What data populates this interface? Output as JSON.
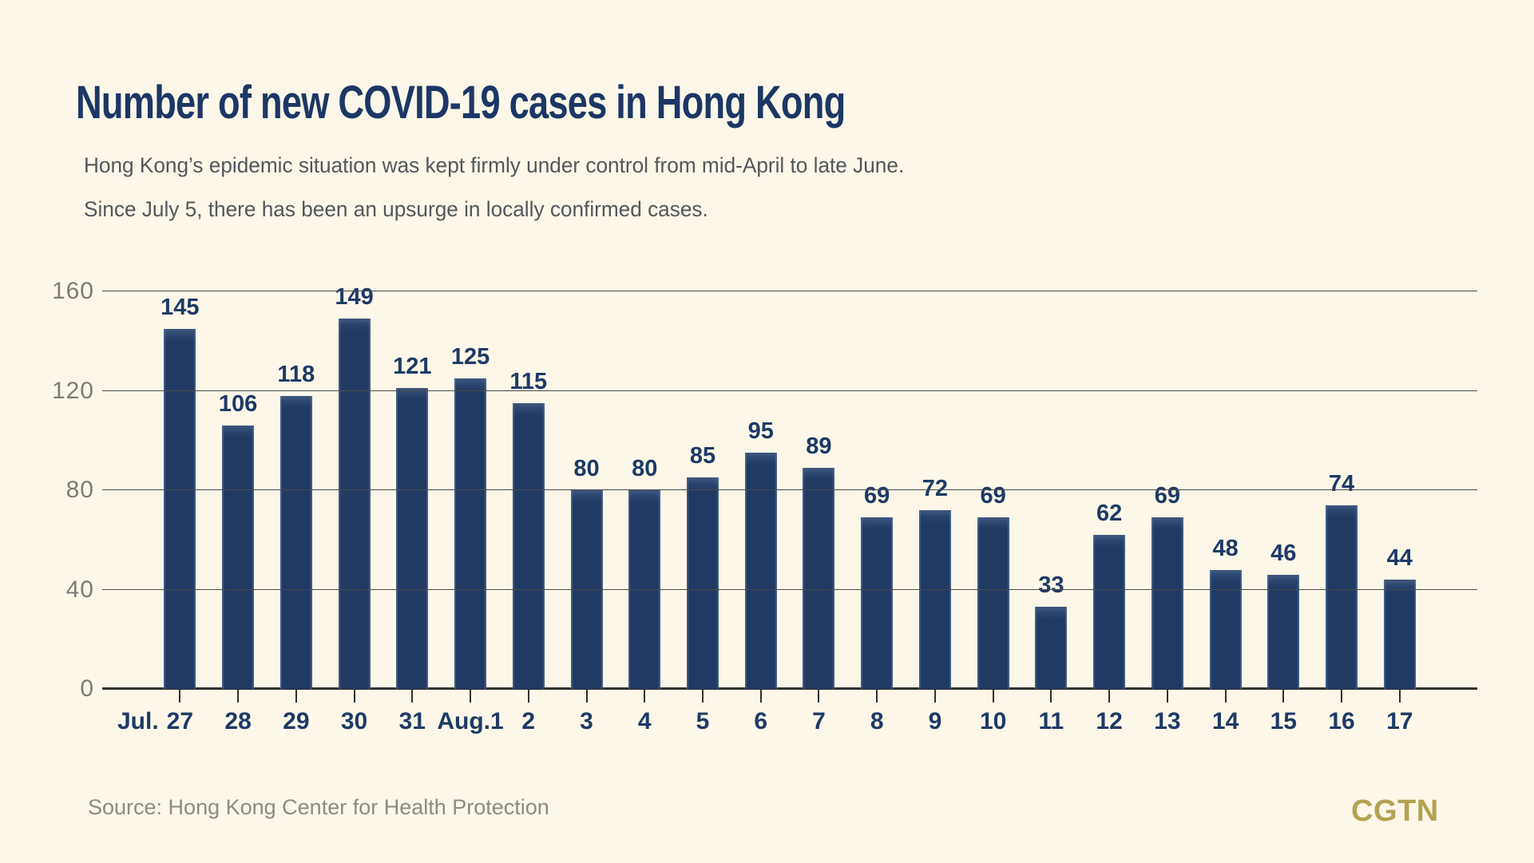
{
  "header": {
    "title": "Number of new COVID-19 cases in Hong Kong",
    "subtitle_line1": "Hong Kong’s epidemic situation was kept firmly under control from mid-April to late June.",
    "subtitle_line2": "Since July 5, there has been an upsurge in locally confirmed cases."
  },
  "chart_data": {
    "type": "bar",
    "title": "Number of new COVID-19 cases in Hong Kong",
    "categories": [
      "Jul. 27",
      "28",
      "29",
      "30",
      "31",
      "Aug.1",
      "2",
      "3",
      "4",
      "5",
      "6",
      "7",
      "8",
      "9",
      "10",
      "11",
      "12",
      "13",
      "14",
      "15",
      "16",
      "17"
    ],
    "values": [
      145,
      106,
      118,
      149,
      121,
      125,
      115,
      80,
      80,
      85,
      95,
      89,
      69,
      72,
      69,
      33,
      62,
      69,
      48,
      46,
      74,
      44
    ],
    "xlabel": "",
    "ylabel": "",
    "ylim": [
      0,
      160
    ],
    "yticks": [
      0,
      40,
      80,
      120,
      160
    ],
    "grid": true,
    "legend": "none",
    "value_labels": "above bars"
  },
  "footer": {
    "source": "Source: Hong Kong Center for Health Protection",
    "logo": "CGTN"
  },
  "colors": {
    "background": "#fcf7e8",
    "bar": "#213a63",
    "bar_edge_highlight": "#5a739b",
    "title": "#1c3765",
    "subtitle": "#54575c",
    "value_label": "#1e3a66",
    "axis_label": "#7d7c78",
    "gridline": "#4b4b49",
    "baseline": "#32322e",
    "source": "#8b8b87",
    "logo": "#b3a24f"
  }
}
